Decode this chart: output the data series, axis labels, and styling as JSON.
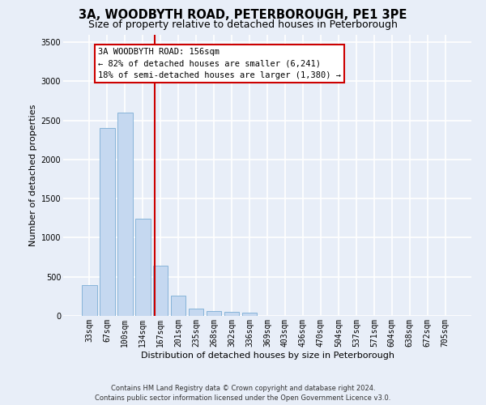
{
  "title": "3A, WOODBYTH ROAD, PETERBOROUGH, PE1 3PE",
  "subtitle": "Size of property relative to detached houses in Peterborough",
  "xlabel": "Distribution of detached houses by size in Peterborough",
  "ylabel": "Number of detached properties",
  "footer_line1": "Contains HM Land Registry data © Crown copyright and database right 2024.",
  "footer_line2": "Contains public sector information licensed under the Open Government Licence v3.0.",
  "categories": [
    "33sqm",
    "67sqm",
    "100sqm",
    "134sqm",
    "167sqm",
    "201sqm",
    "235sqm",
    "268sqm",
    "302sqm",
    "336sqm",
    "369sqm",
    "403sqm",
    "436sqm",
    "470sqm",
    "504sqm",
    "537sqm",
    "571sqm",
    "604sqm",
    "638sqm",
    "672sqm",
    "705sqm"
  ],
  "values": [
    390,
    2400,
    2600,
    1240,
    640,
    255,
    95,
    60,
    55,
    40,
    0,
    0,
    0,
    0,
    0,
    0,
    0,
    0,
    0,
    0,
    0
  ],
  "bar_color": "#c5d8f0",
  "bar_edge_color": "#7aadd4",
  "red_line_x": 3.67,
  "red_line_color": "#cc0000",
  "annotation_text_line1": "3A WOODBYTH ROAD: 156sqm",
  "annotation_text_line2": "← 82% of detached houses are smaller (6,241)",
  "annotation_text_line3": "18% of semi-detached houses are larger (1,380) →",
  "annotation_box_edgecolor": "#cc0000",
  "annotation_box_facecolor": "#ffffff",
  "ylim": [
    0,
    3600
  ],
  "yticks": [
    0,
    500,
    1000,
    1500,
    2000,
    2500,
    3000,
    3500
  ],
  "background_color": "#e8eef8",
  "grid_color": "#ffffff",
  "title_fontsize": 10.5,
  "subtitle_fontsize": 9,
  "xlabel_fontsize": 8,
  "ylabel_fontsize": 8,
  "tick_fontsize": 7,
  "annotation_fontsize": 7.5,
  "footer_fontsize": 6
}
